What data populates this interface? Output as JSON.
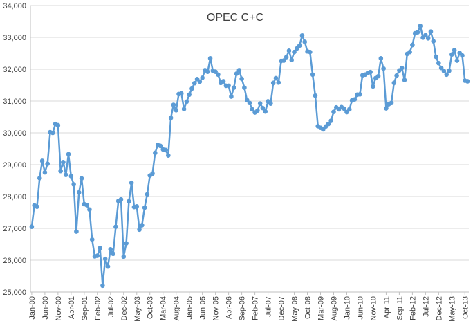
{
  "chart_data": {
    "type": "line",
    "title": "OPEC C+C",
    "xlabel": "",
    "ylabel": "",
    "ylim": [
      25000,
      34000
    ],
    "yticks": [
      25000,
      26000,
      27000,
      28000,
      29000,
      30000,
      31000,
      32000,
      33000,
      34000
    ],
    "ytick_labels": [
      "25,000",
      "26,000",
      "27,000",
      "28,000",
      "29,000",
      "30,000",
      "31,000",
      "32,000",
      "33,000",
      "34,000"
    ],
    "xtick_labels": [
      "Jan-00",
      "Jun-00",
      "Nov-00",
      "Apr-01",
      "Sep-01",
      "Feb-02",
      "Jul-02",
      "Dec-02",
      "May-03",
      "Oct-03",
      "Mar-04",
      "Aug-04",
      "Jan-05",
      "Jun-05",
      "Nov-05",
      "Apr-06",
      "Sep-06",
      "Feb-07",
      "Jul-07",
      "Dec-07",
      "May-08",
      "Oct-08",
      "Mar-09",
      "Aug-09",
      "Jan-10",
      "Jun-10",
      "Nov-10",
      "Apr-11",
      "Sep-11",
      "Feb-12",
      "Jul-12",
      "Dec-12",
      "May-13",
      "Oct-13"
    ],
    "x_start": "Jan-00",
    "x_end": "Nov-13",
    "grid": true,
    "legend": "none",
    "line_color": "#5b9bd5",
    "series": [
      {
        "values": [
          27050,
          27720,
          27680,
          28580,
          29120,
          28760,
          29030,
          30020,
          30000,
          30280,
          30240,
          28800,
          29080,
          28680,
          29330,
          28640,
          28380,
          26900,
          28130,
          28570,
          27760,
          27730,
          27590,
          26650,
          26120,
          26140,
          26380,
          25200,
          26040,
          25800,
          26340,
          26200,
          27050,
          27860,
          27910,
          26110,
          26530,
          27850,
          28430,
          27670,
          27690,
          26960,
          27100,
          27650,
          28070,
          28660,
          28720,
          29370,
          29620,
          29590,
          29480,
          29460,
          29290,
          30470,
          30880,
          30710,
          31220,
          31240,
          30750,
          30980,
          31200,
          31390,
          31560,
          31690,
          31610,
          31730,
          31970,
          31920,
          32340,
          31950,
          31920,
          31830,
          31570,
          31620,
          31480,
          31480,
          31140,
          31420,
          31860,
          31970,
          31700,
          31420,
          31030,
          30940,
          30740,
          30640,
          30700,
          30920,
          30780,
          30670,
          30990,
          30920,
          31570,
          31720,
          31580,
          32260,
          32270,
          32380,
          32580,
          32290,
          32540,
          32650,
          32740,
          33060,
          32860,
          32560,
          32540,
          31830,
          31170,
          30210,
          30160,
          30110,
          30200,
          30280,
          30380,
          30660,
          30800,
          30740,
          30810,
          30760,
          30650,
          30740,
          31020,
          31050,
          31200,
          31210,
          31810,
          31830,
          31880,
          31910,
          31460,
          31720,
          31780,
          32340,
          32020,
          30770,
          30900,
          30940,
          31570,
          31800,
          31960,
          32040,
          31660,
          32480,
          32540,
          32760,
          33130,
          33160,
          33360,
          32990,
          33070,
          32970,
          33180,
          32880,
          32390,
          32190,
          32040,
          31940,
          31830,
          31950,
          32460,
          32600,
          32270,
          32510,
          32430,
          31640,
          31620
        ]
      }
    ]
  }
}
